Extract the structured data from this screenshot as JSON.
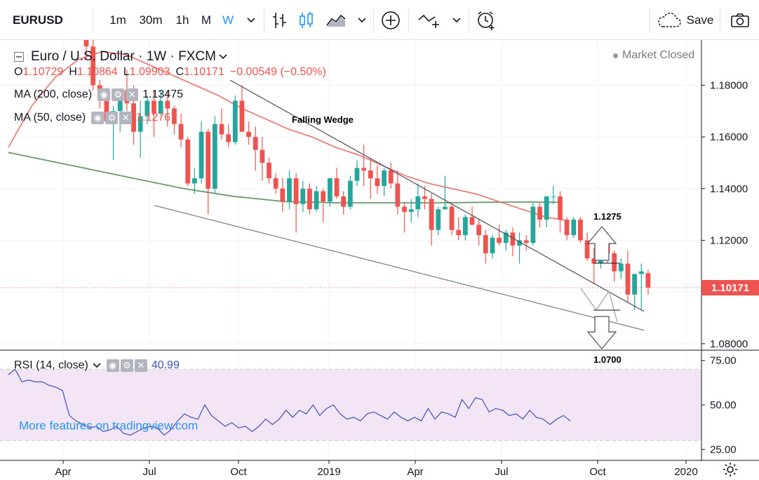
{
  "toolbar": {
    "symbol": "EURUSD",
    "intervals": [
      "1m",
      "30m",
      "1h",
      "M",
      "W"
    ],
    "active_interval": "W",
    "save_label": "Save",
    "active_color": "#2196f3"
  },
  "legend": {
    "title": "Euro / U.S. Dollar · 1W · FXCM",
    "ohlc": {
      "o_label": "O",
      "o": "1.10729",
      "h_label": "H",
      "h": "1.10864",
      "l_label": "L",
      "l": "1.09903",
      "c_label": "C",
      "c": "1.10171",
      "change": "−0.00549 (−0.50%)"
    },
    "ma200_label": "MA (200, close)",
    "ma200_value": "1.13475",
    "ma50_label": "MA (50, close)",
    "ma50_value": "1.12767",
    "market_status": "Market Closed",
    "rsi_label": "RSI (14, close)",
    "rsi_value": "40.99"
  },
  "annotations": {
    "pattern": "Falling Wedge",
    "target_up": "1.1275",
    "target_down": "1.0700"
  },
  "watermark": "More features on tradingview.com",
  "current_price": "1.10171",
  "colors": {
    "up": "#26a69a",
    "down": "#ef5350",
    "ma200": "#6a9a6a",
    "ma50": "#ef6f6a",
    "rsi_line": "#3f51b5",
    "rsi_band": "#f3e5f5"
  },
  "chart_data": [
    {
      "type": "candlestick",
      "title": "Euro / U.S. Dollar · 1W · FXCM",
      "price_axis_ticks": [
        "1.18000",
        "1.16000",
        "1.14000",
        "1.12000",
        "1.10000",
        "1.08000"
      ],
      "x_axis_ticks": [
        "Apr",
        "Jul",
        "Oct",
        "2019",
        "Apr",
        "Jul",
        "Oct",
        "2020"
      ],
      "ylim": [
        1.0775,
        1.1975
      ],
      "first_week": "2018-01-01",
      "candles": [
        [
          1.215,
          1.22,
          1.19,
          1.195
        ],
        [
          1.195,
          1.205,
          1.178,
          1.18
        ],
        [
          1.18,
          1.182,
          1.171,
          1.176
        ],
        [
          1.176,
          1.179,
          1.165,
          1.166
        ],
        [
          1.166,
          1.172,
          1.151,
          1.17
        ],
        [
          1.17,
          1.178,
          1.162,
          1.178
        ],
        [
          1.178,
          1.186,
          1.17,
          1.173
        ],
        [
          1.173,
          1.18,
          1.157,
          1.162
        ],
        [
          1.162,
          1.174,
          1.152,
          1.168
        ],
        [
          1.168,
          1.176,
          1.165,
          1.174
        ],
        [
          1.174,
          1.178,
          1.16,
          1.169
        ],
        [
          1.169,
          1.178,
          1.168,
          1.174
        ],
        [
          1.174,
          1.178,
          1.164,
          1.171
        ],
        [
          1.171,
          1.172,
          1.161,
          1.165
        ],
        [
          1.165,
          1.169,
          1.156,
          1.159
        ],
        [
          1.159,
          1.16,
          1.141,
          1.142
        ],
        [
          1.142,
          1.148,
          1.138,
          1.144
        ],
        [
          1.144,
          1.166,
          1.142,
          1.162
        ],
        [
          1.162,
          1.163,
          1.13,
          1.14
        ],
        [
          1.14,
          1.168,
          1.138,
          1.165
        ],
        [
          1.165,
          1.171,
          1.159,
          1.161
        ],
        [
          1.161,
          1.165,
          1.156,
          1.158
        ],
        [
          1.158,
          1.176,
          1.157,
          1.174
        ],
        [
          1.174,
          1.18,
          1.162,
          1.162
        ],
        [
          1.162,
          1.166,
          1.157,
          1.16
        ],
        [
          1.16,
          1.164,
          1.147,
          1.155
        ],
        [
          1.155,
          1.16,
          1.143,
          1.15
        ],
        [
          1.15,
          1.152,
          1.142,
          1.144
        ],
        [
          1.144,
          1.146,
          1.138,
          1.14
        ],
        [
          1.14,
          1.144,
          1.131,
          1.135
        ],
        [
          1.135,
          1.147,
          1.132,
          1.144
        ],
        [
          1.144,
          1.146,
          1.123,
          1.134
        ],
        [
          1.134,
          1.143,
          1.131,
          1.14
        ],
        [
          1.14,
          1.142,
          1.13,
          1.132
        ],
        [
          1.132,
          1.141,
          1.131,
          1.139
        ],
        [
          1.139,
          1.14,
          1.127,
          1.135
        ],
        [
          1.135,
          1.144,
          1.133,
          1.144
        ],
        [
          1.144,
          1.148,
          1.136,
          1.137
        ],
        [
          1.137,
          1.139,
          1.13,
          1.133
        ],
        [
          1.133,
          1.145,
          1.132,
          1.143
        ],
        [
          1.143,
          1.151,
          1.141,
          1.148
        ],
        [
          1.148,
          1.157,
          1.141,
          1.147
        ],
        [
          1.147,
          1.152,
          1.136,
          1.144
        ],
        [
          1.144,
          1.149,
          1.138,
          1.141
        ],
        [
          1.141,
          1.148,
          1.137,
          1.147
        ],
        [
          1.147,
          1.15,
          1.14,
          1.142
        ],
        [
          1.142,
          1.147,
          1.13,
          1.133
        ],
        [
          1.133,
          1.135,
          1.123,
          1.131
        ],
        [
          1.131,
          1.136,
          1.127,
          1.132
        ],
        [
          1.132,
          1.142,
          1.129,
          1.137
        ],
        [
          1.137,
          1.141,
          1.132,
          1.136
        ],
        [
          1.136,
          1.138,
          1.118,
          1.124
        ],
        [
          1.124,
          1.133,
          1.122,
          1.132
        ],
        [
          1.132,
          1.145,
          1.132,
          1.133
        ],
        [
          1.133,
          1.134,
          1.122,
          1.124
        ],
        [
          1.124,
          1.129,
          1.12,
          1.122
        ],
        [
          1.122,
          1.13,
          1.12,
          1.129
        ],
        [
          1.129,
          1.133,
          1.126,
          1.126
        ],
        [
          1.126,
          1.128,
          1.118,
          1.122
        ],
        [
          1.122,
          1.124,
          1.111,
          1.115
        ],
        [
          1.115,
          1.122,
          1.113,
          1.121
        ],
        [
          1.121,
          1.126,
          1.118,
          1.119
        ],
        [
          1.119,
          1.124,
          1.116,
          1.123
        ],
        [
          1.123,
          1.125,
          1.114,
          1.118
        ],
        [
          1.118,
          1.123,
          1.111,
          1.12
        ],
        [
          1.12,
          1.122,
          1.116,
          1.119
        ],
        [
          1.119,
          1.135,
          1.118,
          1.133
        ],
        [
          1.133,
          1.135,
          1.125,
          1.128
        ],
        [
          1.128,
          1.137,
          1.125,
          1.137
        ],
        [
          1.137,
          1.141,
          1.134,
          1.137
        ],
        [
          1.137,
          1.139,
          1.123,
          1.128
        ],
        [
          1.128,
          1.129,
          1.12,
          1.122
        ],
        [
          1.122,
          1.129,
          1.121,
          1.128
        ],
        [
          1.128,
          1.129,
          1.119,
          1.12
        ],
        [
          1.12,
          1.123,
          1.112,
          1.113
        ],
        [
          1.113,
          1.117,
          1.103,
          1.111
        ],
        [
          1.111,
          1.125,
          1.109,
          1.119
        ],
        [
          1.119,
          1.123,
          1.111,
          1.115
        ],
        [
          1.115,
          1.116,
          1.104,
          1.108
        ],
        [
          1.108,
          1.113,
          1.105,
          1.111
        ],
        [
          1.111,
          1.116,
          1.096,
          1.099
        ],
        [
          1.099,
          1.106,
          1.093,
          1.107
        ],
        [
          1.107,
          1.111,
          1.093,
          1.108
        ],
        [
          1.1073,
          1.1086,
          1.099,
          1.1017
        ]
      ],
      "ma200": [
        1.154,
        1.152,
        1.15,
        1.148,
        1.146,
        1.144,
        1.142,
        1.14,
        1.1385,
        1.137,
        1.136,
        1.135,
        1.1348,
        1.1345,
        1.1345,
        1.1345,
        1.1345,
        1.1345,
        1.1346,
        1.1347,
        1.1348,
        1.1348,
        1.1347
      ],
      "ma50": [
        1.156,
        1.172,
        1.183,
        1.19,
        1.193,
        1.192,
        1.188,
        1.184,
        1.18,
        1.176,
        1.171,
        1.167,
        1.163,
        1.16,
        1.156,
        1.153,
        1.149,
        1.145,
        1.142,
        1.14,
        1.138,
        1.135,
        1.132,
        1.129,
        1.1275
      ],
      "trendlines": {
        "upper": [
          [
            1.182,
            1.0925
          ]
        ],
        "lower": [
          [
            1.1335,
            1.0852
          ]
        ]
      },
      "current_price_line": 1.10171
    },
    {
      "type": "line",
      "title": "RSI (14, close)",
      "ylim": [
        20,
        80
      ],
      "y_ticks": [
        "75.00",
        "50.00",
        "25.00"
      ],
      "band": [
        30,
        70
      ],
      "values": [
        67,
        70,
        63,
        64,
        63,
        63,
        61,
        60,
        58,
        44,
        41,
        39,
        37,
        38,
        35,
        36,
        38,
        34,
        33,
        35,
        37,
        38,
        37,
        33,
        36,
        41,
        45,
        43,
        42,
        50,
        44,
        41,
        38,
        40,
        37,
        38,
        35,
        38,
        42,
        39,
        42,
        47,
        43,
        47,
        45,
        50,
        44,
        48,
        50,
        45,
        42,
        43,
        41,
        45,
        46,
        44,
        42,
        46,
        43,
        41,
        43,
        41,
        48,
        42,
        46,
        45,
        43,
        53,
        48,
        54,
        53,
        46,
        48,
        47,
        44,
        45,
        42,
        47,
        43,
        42,
        39,
        42,
        44,
        41
      ]
    }
  ]
}
